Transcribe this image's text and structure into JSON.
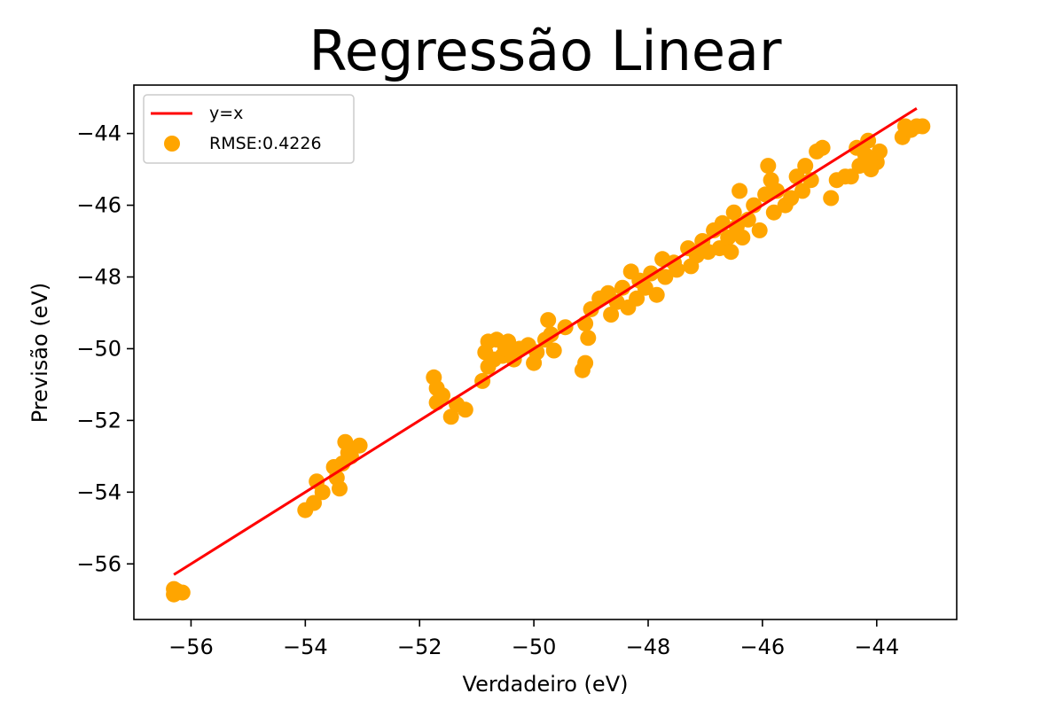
{
  "chart_data": {
    "type": "scatter",
    "title": "Regressão Linear",
    "xlabel": "Verdadeiro (eV)",
    "ylabel": "Previsão (eV)",
    "xlim": [
      -57.0,
      -42.6
    ],
    "ylim": [
      -57.55,
      -42.65
    ],
    "xticks": [
      -56,
      -54,
      -52,
      -50,
      -48,
      -46,
      -44
    ],
    "yticks": [
      -56,
      -54,
      -52,
      -50,
      -48,
      -46,
      -44
    ],
    "tick_labels_x": [
      "−56",
      "−54",
      "−52",
      "−50",
      "−48",
      "−46",
      "−44"
    ],
    "tick_labels_y": [
      "−56",
      "−54",
      "−52",
      "−50",
      "−48",
      "−46",
      "−44"
    ],
    "grid": false,
    "legend_position": "top-left",
    "line": {
      "name": "y=x",
      "x": [
        -56.3,
        -43.3
      ],
      "y": [
        -56.3,
        -43.3
      ],
      "color": "#ff0000"
    },
    "scatter": {
      "name": "RMSE:0.4226",
      "color": "#ffa500",
      "points": [
        [
          -56.3,
          -56.85
        ],
        [
          -56.25,
          -56.75
        ],
        [
          -56.15,
          -56.8
        ],
        [
          -56.3,
          -56.7
        ],
        [
          -54.0,
          -54.5
        ],
        [
          -53.85,
          -54.3
        ],
        [
          -53.8,
          -53.7
        ],
        [
          -53.7,
          -54.0
        ],
        [
          -53.5,
          -53.3
        ],
        [
          -53.45,
          -53.6
        ],
        [
          -53.4,
          -53.9
        ],
        [
          -53.35,
          -53.2
        ],
        [
          -53.3,
          -52.6
        ],
        [
          -53.25,
          -52.9
        ],
        [
          -53.2,
          -53.0
        ],
        [
          -53.05,
          -52.7
        ],
        [
          -51.75,
          -50.8
        ],
        [
          -51.7,
          -51.1
        ],
        [
          -51.7,
          -51.5
        ],
        [
          -51.6,
          -51.3
        ],
        [
          -51.45,
          -51.9
        ],
        [
          -51.35,
          -51.55
        ],
        [
          -51.2,
          -51.7
        ],
        [
          -50.9,
          -50.9
        ],
        [
          -50.85,
          -50.1
        ],
        [
          -50.8,
          -50.5
        ],
        [
          -50.8,
          -49.8
        ],
        [
          -50.7,
          -50.3
        ],
        [
          -50.65,
          -49.75
        ],
        [
          -50.55,
          -50.2
        ],
        [
          -50.5,
          -50.0
        ],
        [
          -50.45,
          -49.8
        ],
        [
          -50.35,
          -50.3
        ],
        [
          -50.25,
          -50.0
        ],
        [
          -50.1,
          -49.9
        ],
        [
          -50.0,
          -50.4
        ],
        [
          -49.95,
          -50.1
        ],
        [
          -49.8,
          -49.75
        ],
        [
          -49.75,
          -49.2
        ],
        [
          -49.7,
          -49.6
        ],
        [
          -49.65,
          -50.05
        ],
        [
          -49.45,
          -49.4
        ],
        [
          -49.15,
          -50.6
        ],
        [
          -49.1,
          -50.4
        ],
        [
          -49.1,
          -49.3
        ],
        [
          -49.05,
          -49.7
        ],
        [
          -49.0,
          -48.9
        ],
        [
          -48.85,
          -48.6
        ],
        [
          -48.7,
          -48.45
        ],
        [
          -48.65,
          -49.05
        ],
        [
          -48.55,
          -48.7
        ],
        [
          -48.45,
          -48.3
        ],
        [
          -48.35,
          -48.85
        ],
        [
          -48.3,
          -47.85
        ],
        [
          -48.2,
          -48.6
        ],
        [
          -48.15,
          -48.1
        ],
        [
          -48.05,
          -48.3
        ],
        [
          -47.95,
          -47.9
        ],
        [
          -47.85,
          -48.5
        ],
        [
          -47.75,
          -47.5
        ],
        [
          -47.7,
          -48.0
        ],
        [
          -47.55,
          -47.6
        ],
        [
          -47.5,
          -47.8
        ],
        [
          -47.3,
          -47.2
        ],
        [
          -47.25,
          -47.7
        ],
        [
          -47.15,
          -47.4
        ],
        [
          -47.05,
          -47.0
        ],
        [
          -46.95,
          -47.3
        ],
        [
          -46.85,
          -46.7
        ],
        [
          -46.75,
          -47.2
        ],
        [
          -46.7,
          -46.5
        ],
        [
          -46.6,
          -46.9
        ],
        [
          -46.55,
          -47.3
        ],
        [
          -46.5,
          -46.2
        ],
        [
          -46.45,
          -46.6
        ],
        [
          -46.4,
          -45.6
        ],
        [
          -46.35,
          -46.9
        ],
        [
          -46.25,
          -46.4
        ],
        [
          -46.15,
          -46.0
        ],
        [
          -46.05,
          -46.7
        ],
        [
          -45.95,
          -45.7
        ],
        [
          -45.9,
          -44.9
        ],
        [
          -45.85,
          -45.3
        ],
        [
          -45.8,
          -46.2
        ],
        [
          -45.75,
          -45.6
        ],
        [
          -45.6,
          -46.0
        ],
        [
          -45.5,
          -45.8
        ],
        [
          -45.4,
          -45.2
        ],
        [
          -45.3,
          -45.6
        ],
        [
          -45.25,
          -44.9
        ],
        [
          -45.15,
          -45.3
        ],
        [
          -45.05,
          -44.5
        ],
        [
          -44.95,
          -44.4
        ],
        [
          -44.8,
          -45.8
        ],
        [
          -44.7,
          -45.3
        ],
        [
          -44.55,
          -45.2
        ],
        [
          -44.45,
          -45.2
        ],
        [
          -44.35,
          -44.4
        ],
        [
          -44.3,
          -44.9
        ],
        [
          -44.2,
          -44.6
        ],
        [
          -44.15,
          -44.2
        ],
        [
          -44.1,
          -45.0
        ],
        [
          -44.05,
          -44.7
        ],
        [
          -44.0,
          -44.8
        ],
        [
          -43.95,
          -44.5
        ],
        [
          -43.55,
          -44.1
        ],
        [
          -43.5,
          -43.8
        ],
        [
          -43.4,
          -43.9
        ],
        [
          -43.3,
          -43.8
        ],
        [
          -43.2,
          -43.8
        ]
      ]
    }
  }
}
